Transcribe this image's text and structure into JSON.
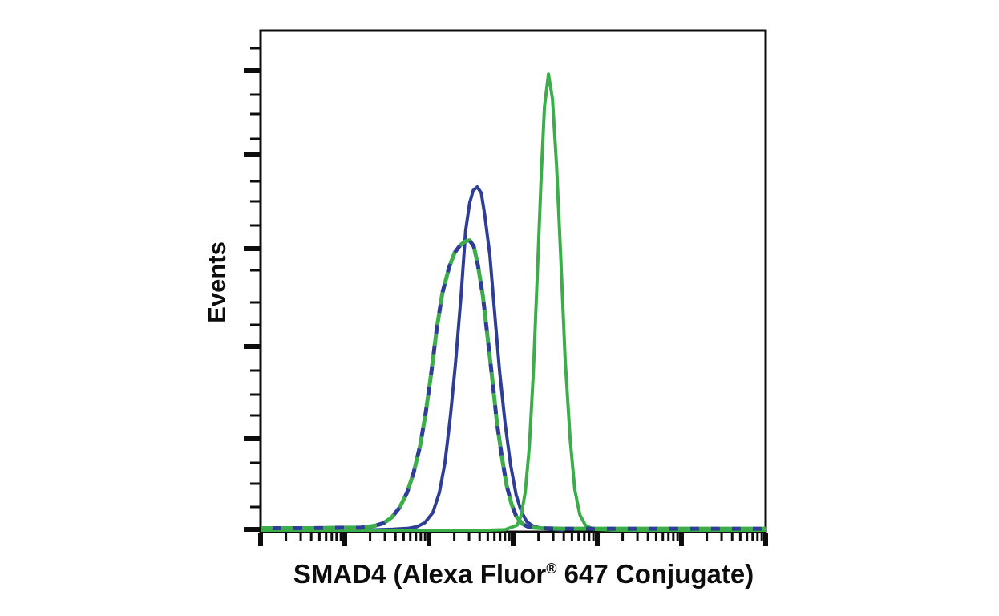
{
  "labels": {
    "ylabel": "Events",
    "xlabel_pre": "SMAD4 (Alexa Fluor",
    "xlabel_reg": "®",
    "xlabel_post": " 647 Conjugate)"
  },
  "chart_data": {
    "type": "line",
    "chart_kind": "flow-cytometry-overlay-histogram",
    "title": "",
    "xlabel": "SMAD4 (Alexa Fluor® 647 Conjugate)",
    "ylabel": "Events",
    "grid": false,
    "legend_position": "none",
    "tick_labels": "none",
    "frame_color": "#0d0d0d",
    "background_color": "#ffffff",
    "axes": {
      "x": {
        "scale": "log",
        "decades": 6,
        "major_fractions": [
          0,
          0.1667,
          0.3333,
          0.5,
          0.6667,
          0.8333,
          1.0
        ],
        "minor_fractions": [
          0.0502,
          0.0795,
          0.1003,
          0.1165,
          0.1297,
          0.1409,
          0.1505,
          0.159,
          0.2168,
          0.2462,
          0.267,
          0.2832,
          0.2964,
          0.3075,
          0.3172,
          0.3257,
          0.3835,
          0.4128,
          0.4337,
          0.4498,
          0.463,
          0.4742,
          0.4838,
          0.4924,
          0.5502,
          0.5795,
          0.6003,
          0.6165,
          0.6297,
          0.6409,
          0.6505,
          0.659,
          0.7168,
          0.7462,
          0.767,
          0.7832,
          0.7964,
          0.8075,
          0.8172,
          0.8257,
          0.8835,
          0.9128,
          0.9337,
          0.9498,
          0.963,
          0.9742,
          0.9838,
          0.9924
        ]
      },
      "y": {
        "scale": "linear",
        "major_fractions": [
          0.08,
          0.248,
          0.4352,
          0.6304,
          0.8144,
          0.9952
        ],
        "minor_fractions": [
          0.0352,
          0.128,
          0.1664,
          0.216,
          0.3008,
          0.3408,
          0.3888,
          0.4784,
          0.5424,
          0.5872,
          0.6784,
          0.7264,
          0.768,
          0.8624,
          0.904,
          0.9504
        ]
      }
    },
    "series": [
      {
        "name": "solid-blue-stained",
        "style": "solid",
        "color": "#2E3E96",
        "stroke_width": 4,
        "peak": {
          "mode_x_estimate_au": 370,
          "mode_log10": 2.57,
          "relative_height": 0.69
        },
        "points": [
          [
            0.2,
            0.0
          ],
          [
            0.262,
            0.002
          ],
          [
            0.294,
            0.004
          ],
          [
            0.31,
            0.007
          ],
          [
            0.325,
            0.015
          ],
          [
            0.341,
            0.035
          ],
          [
            0.354,
            0.075
          ],
          [
            0.365,
            0.135
          ],
          [
            0.376,
            0.23
          ],
          [
            0.386,
            0.335
          ],
          [
            0.397,
            0.47
          ],
          [
            0.406,
            0.6
          ],
          [
            0.414,
            0.655
          ],
          [
            0.421,
            0.68
          ],
          [
            0.429,
            0.687
          ],
          [
            0.437,
            0.675
          ],
          [
            0.444,
            0.63
          ],
          [
            0.454,
            0.55
          ],
          [
            0.463,
            0.44
          ],
          [
            0.473,
            0.32
          ],
          [
            0.484,
            0.215
          ],
          [
            0.495,
            0.13
          ],
          [
            0.506,
            0.07
          ],
          [
            0.516,
            0.038
          ],
          [
            0.527,
            0.017
          ],
          [
            0.54,
            0.008
          ],
          [
            0.556,
            0.004
          ],
          [
            0.579,
            0.002
          ],
          [
            0.6,
            0.0
          ]
        ]
      },
      {
        "name": "solid-green-stained",
        "style": "solid",
        "color": "#3BAD49",
        "stroke_width": 4,
        "peak": {
          "mode_x_estimate_au": 2600,
          "mode_log10": 3.42,
          "relative_height": 0.91
        },
        "points": [
          [
            0.0,
            0.0
          ],
          [
            0.45,
            0.0
          ],
          [
            0.484,
            0.001
          ],
          [
            0.508,
            0.01
          ],
          [
            0.516,
            0.03
          ],
          [
            0.524,
            0.076
          ],
          [
            0.532,
            0.166
          ],
          [
            0.54,
            0.314
          ],
          [
            0.548,
            0.511
          ],
          [
            0.556,
            0.718
          ],
          [
            0.562,
            0.847
          ],
          [
            0.57,
            0.913
          ],
          [
            0.578,
            0.863
          ],
          [
            0.586,
            0.73
          ],
          [
            0.594,
            0.554
          ],
          [
            0.603,
            0.342
          ],
          [
            0.613,
            0.181
          ],
          [
            0.622,
            0.081
          ],
          [
            0.632,
            0.031
          ],
          [
            0.643,
            0.01
          ],
          [
            0.659,
            0.002
          ],
          [
            0.7,
            0.0
          ],
          [
            1.0,
            0.0
          ]
        ]
      },
      {
        "name": "dashed-green-control",
        "style": "dashed",
        "color": "#3BAD49",
        "stroke_width": 5,
        "dash": "15 11",
        "dash_offset": 0,
        "peak": {
          "mode_x_estimate_au": 300,
          "mode_log10": 2.48,
          "relative_height": 0.58
        },
        "points": [
          [
            0.0,
            0.004
          ],
          [
            0.1,
            0.004
          ],
          [
            0.159,
            0.005
          ],
          [
            0.198,
            0.005
          ],
          [
            0.227,
            0.009
          ],
          [
            0.243,
            0.014
          ],
          [
            0.259,
            0.025
          ],
          [
            0.275,
            0.045
          ],
          [
            0.29,
            0.075
          ],
          [
            0.303,
            0.115
          ],
          [
            0.316,
            0.17
          ],
          [
            0.327,
            0.235
          ],
          [
            0.338,
            0.315
          ],
          [
            0.349,
            0.405
          ],
          [
            0.36,
            0.475
          ],
          [
            0.373,
            0.525
          ],
          [
            0.384,
            0.555
          ],
          [
            0.395,
            0.57
          ],
          [
            0.405,
            0.578
          ],
          [
            0.414,
            0.58
          ],
          [
            0.422,
            0.568
          ],
          [
            0.43,
            0.532
          ],
          [
            0.44,
            0.47
          ],
          [
            0.449,
            0.39
          ],
          [
            0.459,
            0.3
          ],
          [
            0.468,
            0.215
          ],
          [
            0.478,
            0.145
          ],
          [
            0.487,
            0.09
          ],
          [
            0.497,
            0.052
          ],
          [
            0.506,
            0.028
          ],
          [
            0.519,
            0.012
          ],
          [
            0.532,
            0.006
          ],
          [
            0.556,
            0.004
          ],
          [
            0.6,
            0.003
          ],
          [
            0.8,
            0.003
          ],
          [
            1.0,
            0.003
          ]
        ]
      },
      {
        "name": "dashed-blue-control",
        "style": "dashed",
        "color": "#2E3E96",
        "stroke_width": 5,
        "dash": "11 15",
        "dash_offset": -15,
        "peak": {
          "mode_x_estimate_au": 300,
          "mode_log10": 2.48,
          "relative_height": 0.58
        },
        "points": [
          [
            0.0,
            0.004
          ],
          [
            0.1,
            0.004
          ],
          [
            0.159,
            0.005
          ],
          [
            0.198,
            0.005
          ],
          [
            0.227,
            0.009
          ],
          [
            0.243,
            0.014
          ],
          [
            0.259,
            0.025
          ],
          [
            0.275,
            0.045
          ],
          [
            0.29,
            0.075
          ],
          [
            0.303,
            0.115
          ],
          [
            0.316,
            0.17
          ],
          [
            0.327,
            0.235
          ],
          [
            0.338,
            0.315
          ],
          [
            0.349,
            0.405
          ],
          [
            0.36,
            0.475
          ],
          [
            0.373,
            0.525
          ],
          [
            0.384,
            0.555
          ],
          [
            0.395,
            0.57
          ],
          [
            0.405,
            0.578
          ],
          [
            0.414,
            0.58
          ],
          [
            0.422,
            0.568
          ],
          [
            0.43,
            0.532
          ],
          [
            0.44,
            0.47
          ],
          [
            0.449,
            0.39
          ],
          [
            0.459,
            0.3
          ],
          [
            0.468,
            0.215
          ],
          [
            0.478,
            0.145
          ],
          [
            0.487,
            0.09
          ],
          [
            0.497,
            0.052
          ],
          [
            0.506,
            0.028
          ],
          [
            0.519,
            0.012
          ],
          [
            0.532,
            0.006
          ],
          [
            0.556,
            0.004
          ],
          [
            0.6,
            0.003
          ],
          [
            0.8,
            0.003
          ],
          [
            1.0,
            0.003
          ]
        ]
      }
    ]
  }
}
